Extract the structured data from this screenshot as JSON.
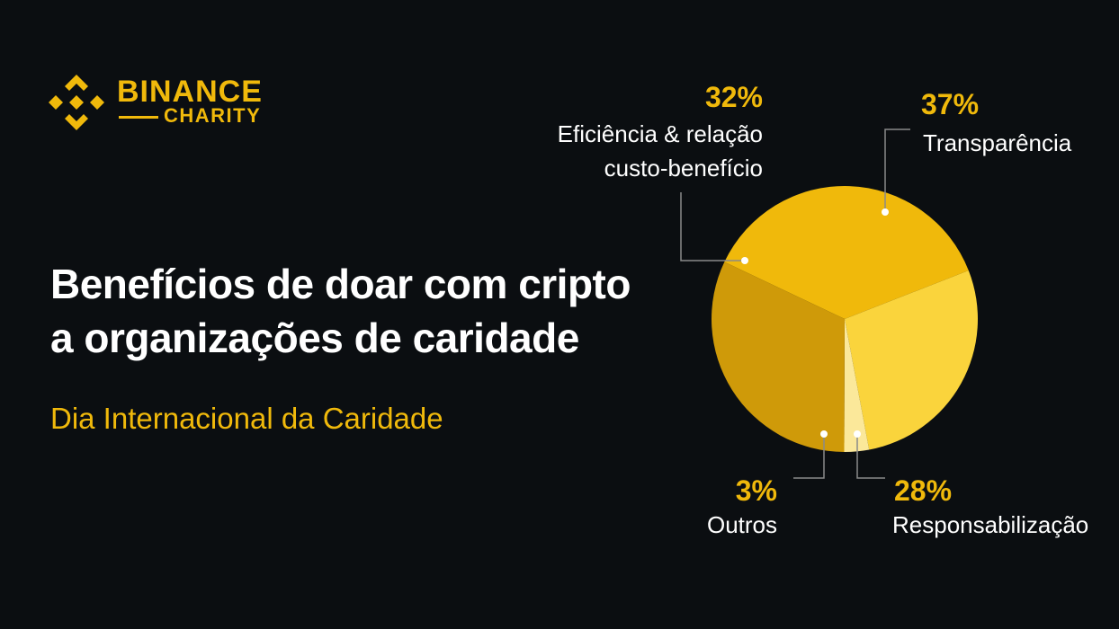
{
  "brand": {
    "name_top": "BINANCE",
    "name_bottom": "CHARITY",
    "icon": "binance-logo-icon",
    "color": "#f0b90b"
  },
  "headline": {
    "line1": "Benefícios de doar com cripto",
    "line2": "a organizações de caridade"
  },
  "subtitle": "Dia Internacional da Caridade",
  "colors": {
    "background": "#0b0e11",
    "accent": "#f0b90b",
    "text": "#ffffff",
    "leader_line": "#8a8a8a"
  },
  "chart_data": {
    "type": "pie",
    "title": "",
    "slices": [
      {
        "pct_label": "37%",
        "label": "Transparência",
        "value": 37,
        "color": "#f0b90b"
      },
      {
        "pct_label": "28%",
        "label": "Responsabilização",
        "value": 28,
        "color": "#fad43c"
      },
      {
        "pct_label": "3%",
        "label": "Outros",
        "value": 3,
        "color": "#fbe89a"
      },
      {
        "pct_label": "32%",
        "label_line1": "Eficiência & relação",
        "label_line2": "custo-benefício",
        "value": 32,
        "color": "#cf9a09"
      }
    ]
  }
}
